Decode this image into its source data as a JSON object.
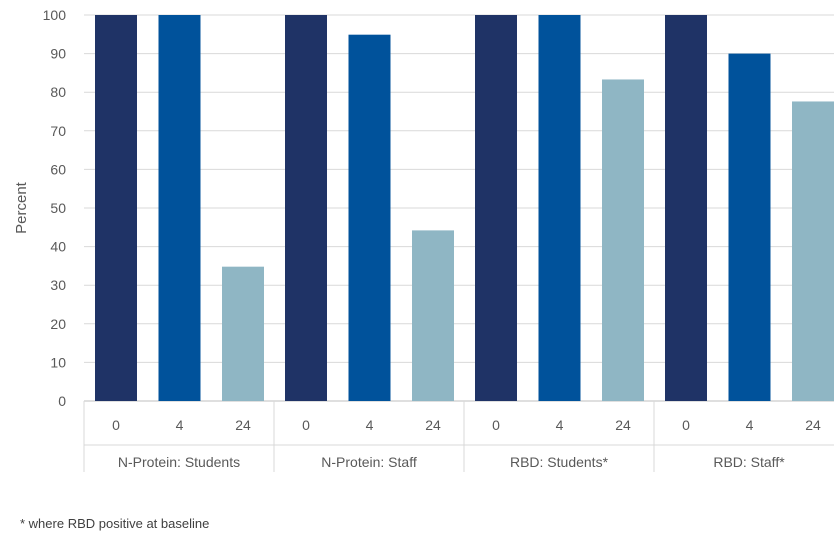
{
  "chart_data": {
    "type": "bar",
    "title": "",
    "ylabel": "Percent",
    "ylim": [
      0,
      100
    ],
    "yticks": [
      0,
      10,
      20,
      30,
      40,
      50,
      60,
      70,
      80,
      90,
      100
    ],
    "grid": true,
    "groups": [
      {
        "name": "N-Protein: Students",
        "categories": [
          "0",
          "4",
          "24"
        ],
        "values": [
          100,
          100,
          34.8
        ]
      },
      {
        "name": "N-Protein: Staff",
        "categories": [
          "0",
          "4",
          "24"
        ],
        "values": [
          100,
          94.9,
          44.2
        ]
      },
      {
        "name": "RBD: Students*",
        "categories": [
          "0",
          "4",
          "24"
        ],
        "values": [
          100,
          100,
          83.3
        ]
      },
      {
        "name": "RBD: Staff*",
        "categories": [
          "0",
          "4",
          "24"
        ],
        "values": [
          100,
          90,
          77.6
        ]
      }
    ],
    "colors": [
      "#1f3366",
      "#00529b",
      "#8fb6c4"
    ]
  },
  "footnote": "* where RBD positive at baseline"
}
